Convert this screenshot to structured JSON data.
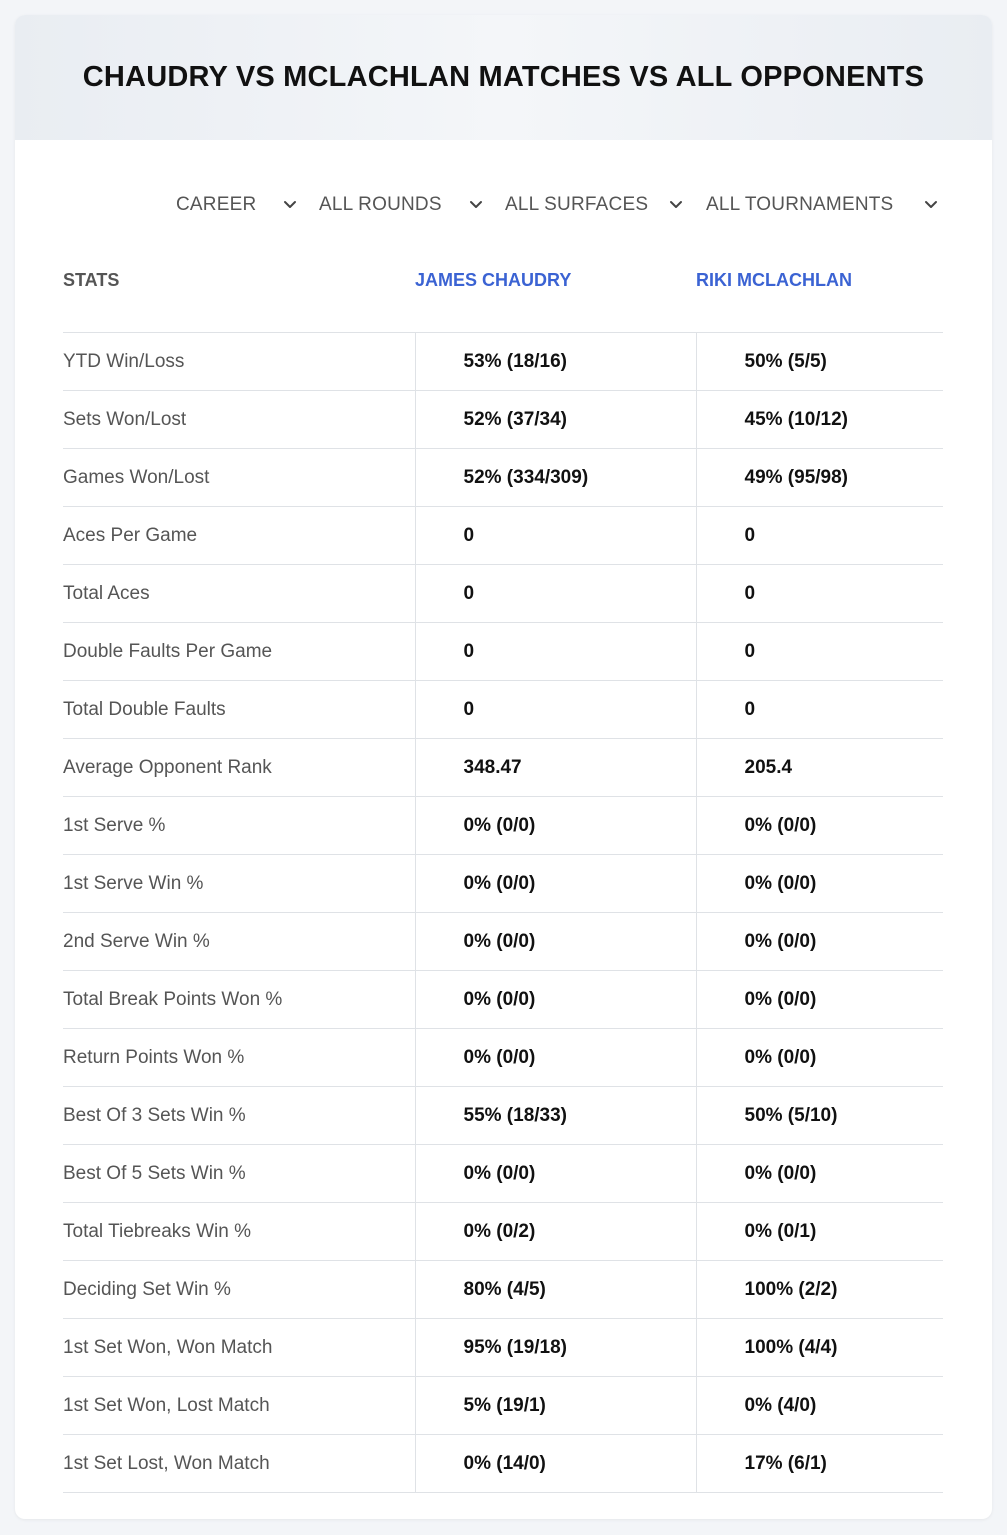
{
  "header": {
    "title": "CHAUDRY VS MCLACHLAN MATCHES VS ALL OPPONENTS"
  },
  "filters": [
    {
      "label": "CAREER",
      "icon": "chevron-down-icon"
    },
    {
      "label": "ALL ROUNDS",
      "icon": "chevron-down-icon"
    },
    {
      "label": "ALL SURFACES",
      "icon": "chevron-down-icon"
    },
    {
      "label": "ALL TOURNAMENTS",
      "icon": "chevron-down-icon"
    }
  ],
  "table": {
    "headers": {
      "stats": "STATS",
      "player1": "JAMES CHAUDRY",
      "player2": "RIKI MCLACHLAN"
    },
    "rows": [
      {
        "label": "YTD Win/Loss",
        "p1": "53% (18/16)",
        "p2": "50% (5/5)"
      },
      {
        "label": "Sets Won/Lost",
        "p1": "52% (37/34)",
        "p2": "45% (10/12)"
      },
      {
        "label": "Games Won/Lost",
        "p1": "52% (334/309)",
        "p2": "49% (95/98)"
      },
      {
        "label": "Aces Per Game",
        "p1": "0",
        "p2": "0"
      },
      {
        "label": "Total Aces",
        "p1": "0",
        "p2": "0"
      },
      {
        "label": "Double Faults Per Game",
        "p1": "0",
        "p2": "0"
      },
      {
        "label": "Total Double Faults",
        "p1": "0",
        "p2": "0"
      },
      {
        "label": "Average Opponent Rank",
        "p1": "348.47",
        "p2": "205.4"
      },
      {
        "label": "1st Serve %",
        "p1": "0% (0/0)",
        "p2": "0% (0/0)"
      },
      {
        "label": "1st Serve Win %",
        "p1": "0% (0/0)",
        "p2": "0% (0/0)"
      },
      {
        "label": "2nd Serve Win %",
        "p1": "0% (0/0)",
        "p2": "0% (0/0)"
      },
      {
        "label": "Total Break Points Won %",
        "p1": "0% (0/0)",
        "p2": "0% (0/0)"
      },
      {
        "label": "Return Points Won %",
        "p1": "0% (0/0)",
        "p2": "0% (0/0)"
      },
      {
        "label": "Best Of 3 Sets Win %",
        "p1": "55% (18/33)",
        "p2": "50% (5/10)"
      },
      {
        "label": "Best Of 5 Sets Win %",
        "p1": "0% (0/0)",
        "p2": "0% (0/0)"
      },
      {
        "label": "Total Tiebreaks Win %",
        "p1": "0% (0/2)",
        "p2": "0% (0/1)"
      },
      {
        "label": "Deciding Set Win %",
        "p1": "80% (4/5)",
        "p2": "100% (2/2)"
      },
      {
        "label": "1st Set Won, Won Match",
        "p1": "95% (19/18)",
        "p2": "100% (4/4)"
      },
      {
        "label": "1st Set Won, Lost Match",
        "p1": "5% (19/1)",
        "p2": "0% (4/0)"
      },
      {
        "label": "1st Set Lost, Won Match",
        "p1": "0% (14/0)",
        "p2": "17% (6/1)"
      }
    ]
  },
  "colors": {
    "accent": "#3b63d3",
    "text": "#111111",
    "muted": "#555555",
    "border": "#dfe2e6"
  }
}
